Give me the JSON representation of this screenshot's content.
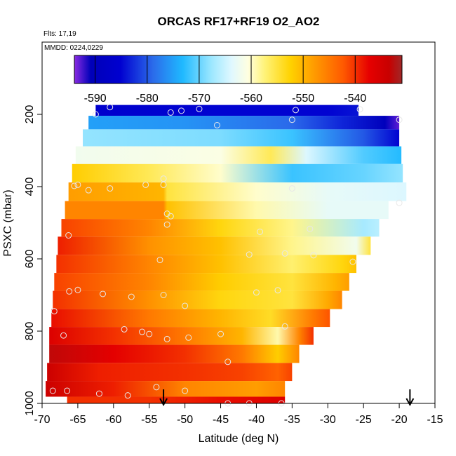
{
  "chart_data": {
    "type": "heatmap",
    "title": "ORCAS RF17+RF19 O2_AO2",
    "subtitle_flights": "Flts: 17,19",
    "subtitle_dates": "MMDD: 0224,0229",
    "xlabel": "Latitude (deg N)",
    "ylabel": "PSXC (mbar)",
    "xlim": [
      -70,
      -15
    ],
    "ylim_reversed": [
      1000,
      0
    ],
    "x_ticks": [
      "-70",
      "-65",
      "-60",
      "-55",
      "-50",
      "-45",
      "-40",
      "-35",
      "-30",
      "-25",
      "-20",
      "-15"
    ],
    "y_ticks": [
      "200",
      "400",
      "600",
      "800",
      "1000"
    ],
    "colorbar": {
      "ticks": [
        "-590",
        "-580",
        "-570",
        "-560",
        "-550",
        "-540"
      ],
      "range": [
        -594,
        -531
      ]
    },
    "bands": [
      {
        "p": 189,
        "lat_min": -62.5,
        "lat_max": -25.7,
        "stops": [
          [
            -62.5,
            -586
          ],
          [
            -45,
            -585
          ],
          [
            -30,
            -585
          ],
          [
            -25.7,
            -584
          ]
        ]
      },
      {
        "p": 219,
        "lat_min": -63.5,
        "lat_max": -20.0,
        "stops": [
          [
            -63.5,
            -575
          ],
          [
            -50,
            -576
          ],
          [
            -35,
            -579
          ],
          [
            -28,
            -583
          ],
          [
            -22,
            -590
          ],
          [
            -20,
            -593
          ]
        ]
      },
      {
        "p": 264,
        "lat_min": -64.3,
        "lat_max": -20.0,
        "stops": [
          [
            -64.3,
            -568
          ],
          [
            -45,
            -569
          ],
          [
            -35,
            -572
          ],
          [
            -25,
            -580
          ],
          [
            -20,
            -585
          ]
        ]
      },
      {
        "p": 313,
        "lat_min": -65.3,
        "lat_max": -19.7,
        "stops": [
          [
            -65.3,
            -562
          ],
          [
            -45,
            -561
          ],
          [
            -38,
            -556
          ],
          [
            -33,
            -564
          ],
          [
            -25,
            -571
          ],
          [
            -19.7,
            -573
          ]
        ]
      },
      {
        "p": 362,
        "lat_min": -65.8,
        "lat_max": -19.5,
        "stops": [
          [
            -65.8,
            -552
          ],
          [
            -55,
            -556
          ],
          [
            -45,
            -560
          ],
          [
            -35,
            -572
          ],
          [
            -25,
            -570
          ],
          [
            -19.5,
            -568
          ]
        ]
      },
      {
        "p": 415,
        "lat_min": -66.3,
        "lat_max": -19.0,
        "stops": [
          [
            -66.3,
            -548
          ],
          [
            -53,
            -550
          ],
          [
            -52.5,
            -555
          ],
          [
            -40,
            -560
          ],
          [
            -30,
            -563
          ],
          [
            -19,
            -564
          ]
        ]
      },
      {
        "p": 465,
        "lat_min": -66.8,
        "lat_max": -21.5,
        "stops": [
          [
            -66.8,
            -546
          ],
          [
            -53,
            -546
          ],
          [
            -52.5,
            -551
          ],
          [
            -40,
            -559
          ],
          [
            -30,
            -563
          ],
          [
            -21.5,
            -563
          ]
        ]
      },
      {
        "p": 514,
        "lat_min": -67.3,
        "lat_max": -22.8,
        "stops": [
          [
            -67.3,
            -541
          ],
          [
            -55,
            -546
          ],
          [
            -45,
            -553
          ],
          [
            -35,
            -558
          ],
          [
            -25,
            -567
          ],
          [
            -22.8,
            -566
          ]
        ]
      },
      {
        "p": 563,
        "lat_min": -67.8,
        "lat_max": -24.0,
        "stops": [
          [
            -67.8,
            -539
          ],
          [
            -55,
            -547
          ],
          [
            -45,
            -551
          ],
          [
            -35,
            -558
          ],
          [
            -26,
            -562
          ],
          [
            -24,
            -555
          ]
        ]
      },
      {
        "p": 615,
        "lat_min": -68.0,
        "lat_max": -26.0,
        "stops": [
          [
            -68,
            -540
          ],
          [
            -55,
            -546
          ],
          [
            -45,
            -551
          ],
          [
            -35,
            -557
          ],
          [
            -28,
            -553
          ],
          [
            -26,
            -551
          ]
        ]
      },
      {
        "p": 663,
        "lat_min": -68.3,
        "lat_max": -27.0,
        "stops": [
          [
            -68.3,
            -541
          ],
          [
            -55,
            -546
          ],
          [
            -45,
            -552
          ],
          [
            -35,
            -555
          ],
          [
            -29,
            -550
          ],
          [
            -27,
            -548
          ]
        ]
      },
      {
        "p": 714,
        "lat_min": -68.5,
        "lat_max": -28.0,
        "stops": [
          [
            -68.5,
            -540
          ],
          [
            -55,
            -547
          ],
          [
            -45,
            -553
          ],
          [
            -35,
            -555
          ],
          [
            -30,
            -549
          ],
          [
            -28,
            -546
          ]
        ]
      },
      {
        "p": 764,
        "lat_min": -68.7,
        "lat_max": -29.7,
        "stops": [
          [
            -68.7,
            -538
          ],
          [
            -55,
            -545
          ],
          [
            -45,
            -550
          ],
          [
            -38,
            -554
          ],
          [
            -32,
            -545
          ],
          [
            -29.7,
            -542
          ]
        ]
      },
      {
        "p": 813,
        "lat_min": -69.0,
        "lat_max": -32.0,
        "stops": [
          [
            -69,
            -536
          ],
          [
            -60,
            -540
          ],
          [
            -50,
            -545
          ],
          [
            -42,
            -550
          ],
          [
            -37,
            -559
          ],
          [
            -34,
            -546
          ],
          [
            -32,
            -540
          ]
        ]
      },
      {
        "p": 863,
        "lat_min": -69.0,
        "lat_max": -34.0,
        "stops": [
          [
            -69,
            -533
          ],
          [
            -60,
            -537
          ],
          [
            -50,
            -540
          ],
          [
            -42,
            -545
          ],
          [
            -37,
            -552
          ],
          [
            -34,
            -546
          ]
        ]
      },
      {
        "p": 913,
        "lat_min": -69.3,
        "lat_max": -35.0,
        "stops": [
          [
            -69.3,
            -534
          ],
          [
            -62,
            -539
          ],
          [
            -50,
            -540
          ],
          [
            -42,
            -541
          ],
          [
            -37,
            -543
          ],
          [
            -35,
            -541
          ]
        ]
      },
      {
        "p": 963,
        "lat_min": -69.5,
        "lat_max": -36.0,
        "stops": [
          [
            -69.5,
            -534
          ],
          [
            -60,
            -539
          ],
          [
            -50,
            -546
          ],
          [
            -40,
            -548
          ],
          [
            -36,
            -546
          ]
        ]
      },
      {
        "p": 1000,
        "lat_min": -66.5,
        "lat_max": -36.0,
        "stops": [
          [
            -66.5,
            -540
          ],
          [
            -55,
            -540
          ],
          [
            -45,
            -538
          ],
          [
            -36,
            -536
          ]
        ]
      }
    ],
    "points": [
      [
        -60.5,
        180
      ],
      [
        -62.5,
        200
      ],
      [
        -48,
        185
      ],
      [
        -52,
        195
      ],
      [
        -50.5,
        190
      ],
      [
        -45.5,
        230
      ],
      [
        -34.5,
        188
      ],
      [
        -35,
        215
      ],
      [
        -25.5,
        186
      ],
      [
        -20,
        215
      ],
      [
        -65,
        395
      ],
      [
        -63.5,
        410
      ],
      [
        -60.5,
        405
      ],
      [
        -55.5,
        395
      ],
      [
        -53,
        395
      ],
      [
        -53,
        378
      ],
      [
        -35,
        405
      ],
      [
        -65.5,
        398
      ],
      [
        -52,
        482
      ],
      [
        -52.5,
        475
      ],
      [
        -52.5,
        505
      ],
      [
        -39.5,
        525
      ],
      [
        -32.5,
        517
      ],
      [
        -66.3,
        535
      ],
      [
        -20,
        445
      ],
      [
        -36,
        585
      ],
      [
        -41,
        588
      ],
      [
        -32,
        590
      ],
      [
        -53.5,
        603
      ],
      [
        -26.5,
        608
      ],
      [
        -66.2,
        690
      ],
      [
        -65,
        686
      ],
      [
        -61.5,
        697
      ],
      [
        -57.5,
        705
      ],
      [
        -53,
        700
      ],
      [
        -50,
        730
      ],
      [
        -40,
        693
      ],
      [
        -37,
        687
      ],
      [
        -68.3,
        745
      ],
      [
        -67,
        812
      ],
      [
        -58.5,
        795
      ],
      [
        -56,
        802
      ],
      [
        -55,
        808
      ],
      [
        -52.5,
        822
      ],
      [
        -49.5,
        818
      ],
      [
        -45,
        808
      ],
      [
        -44,
        885
      ],
      [
        -36,
        787
      ],
      [
        -68.5,
        965
      ],
      [
        -66.5,
        965
      ],
      [
        -62,
        973
      ],
      [
        -58,
        978
      ],
      [
        -54,
        955
      ],
      [
        -50,
        965
      ],
      [
        -44,
        1000
      ],
      [
        -41,
        1000
      ],
      [
        -36.5,
        1000
      ]
    ],
    "arrows": [
      -53,
      -18.5
    ]
  }
}
